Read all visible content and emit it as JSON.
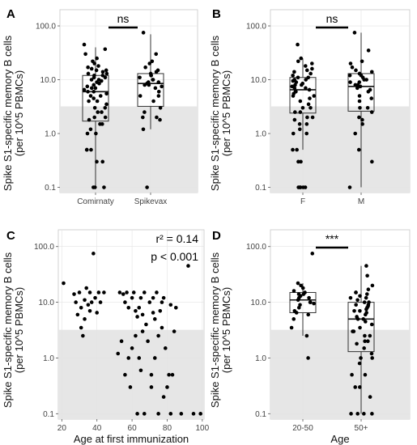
{
  "ylabel_line1": "Spike S1-specific memory B cells",
  "ylabel_line2": "(per 10^5 PBMCs)",
  "y_ticks": [
    "0.1",
    "1.0",
    "10.0",
    "100.0"
  ],
  "threshold": 3.2,
  "colors": {
    "shade": "#e6e6e6",
    "points": "#000000",
    "box": "#333333"
  },
  "chart_data": [
    {
      "panel": "A",
      "type": "boxplot",
      "y_scale": "log10",
      "ylim": [
        0.08,
        200
      ],
      "xlabel": "",
      "significance": "ns",
      "groups": [
        {
          "label": "Comirnaty",
          "box": {
            "whisker_low": 0.1,
            "q1": 1.7,
            "median": 6.0,
            "q3": 12.0,
            "whisker_high": 40
          },
          "values": [
            45,
            37,
            30,
            25,
            22,
            20,
            18,
            17,
            16,
            15,
            15,
            14,
            13,
            13,
            12,
            12,
            11,
            11,
            10,
            10,
            9.5,
            9,
            8.5,
            8,
            7.5,
            7,
            7,
            6.5,
            6,
            6,
            5.5,
            5,
            5,
            4.5,
            4,
            4,
            3.5,
            3,
            3,
            2.5,
            2.5,
            2,
            2,
            1.8,
            1.5,
            1.5,
            1.2,
            1,
            1,
            0.5,
            0.5,
            0.5,
            0.3,
            0.3,
            0.1,
            0.1,
            0.1
          ]
        },
        {
          "label": "Spikevax",
          "box": {
            "whisker_low": 1.2,
            "q1": 3.2,
            "median": 8.5,
            "q3": 13.0,
            "whisker_high": 70
          },
          "values": [
            75,
            30,
            22,
            20,
            17,
            15,
            14,
            13,
            12,
            12,
            11,
            10,
            10,
            9,
            9,
            8.5,
            8,
            8,
            7.5,
            7,
            6,
            5,
            5,
            4,
            3,
            2.5,
            2,
            2,
            1.8,
            1.2,
            0.1
          ]
        }
      ]
    },
    {
      "panel": "B",
      "type": "boxplot",
      "y_scale": "log10",
      "ylim": [
        0.08,
        200
      ],
      "xlabel": "",
      "significance": "ns",
      "groups": [
        {
          "label": "F",
          "box": {
            "whisker_low": 0.5,
            "q1": 2.4,
            "median": 6.5,
            "q3": 11.0,
            "whisker_high": 25
          },
          "values": [
            45,
            25,
            22,
            20,
            18,
            16,
            15,
            14,
            13,
            12,
            11,
            11,
            10,
            10,
            9.5,
            9,
            8.5,
            8,
            8,
            7.5,
            7,
            7,
            6.5,
            6,
            6,
            5.5,
            5,
            5,
            4.5,
            4,
            3.5,
            3,
            3,
            2.5,
            2.5,
            2,
            2,
            1.8,
            1.5,
            1.5,
            1.2,
            1,
            1,
            0.5,
            0.5,
            0.3,
            0.3,
            0.1,
            0.1,
            0.1,
            0.1,
            0.1
          ]
        },
        {
          "label": "M",
          "box": {
            "whisker_low": 0.1,
            "q1": 2.6,
            "median": 7.5,
            "q3": 13.0,
            "whisker_high": 75
          },
          "values": [
            75,
            35,
            22,
            20,
            17,
            15,
            14,
            13,
            12,
            12,
            11,
            10,
            10,
            9,
            9,
            8,
            8,
            7.5,
            7,
            6.5,
            6,
            5,
            4.5,
            4,
            3,
            3,
            2.5,
            2,
            1.8,
            1.5,
            1,
            0.5,
            0.3,
            0.1
          ]
        }
      ]
    },
    {
      "panel": "C",
      "type": "scatter",
      "y_scale": "log10",
      "ylim": [
        0.08,
        200
      ],
      "xlim": [
        18,
        101
      ],
      "x_ticks": [
        20,
        40,
        60,
        80,
        100
      ],
      "xlabel": "Age at first immunization",
      "annotation_r2": "r² = 0.14",
      "annotation_p": "p < 0.001",
      "points": [
        [
          21,
          22
        ],
        [
          27,
          14
        ],
        [
          28,
          10
        ],
        [
          29,
          6
        ],
        [
          30,
          15
        ],
        [
          31,
          8
        ],
        [
          31,
          3.5
        ],
        [
          32,
          2.5
        ],
        [
          33,
          11
        ],
        [
          33,
          5
        ],
        [
          34,
          18
        ],
        [
          35,
          9
        ],
        [
          36,
          15
        ],
        [
          36,
          7
        ],
        [
          37,
          10
        ],
        [
          38,
          75
        ],
        [
          39,
          12
        ],
        [
          40,
          6.5
        ],
        [
          41,
          15
        ],
        [
          42,
          10
        ],
        [
          44,
          15
        ],
        [
          52,
          1.2
        ],
        [
          53,
          15
        ],
        [
          54,
          2
        ],
        [
          55,
          14
        ],
        [
          56,
          0.5
        ],
        [
          56,
          10
        ],
        [
          57,
          15
        ],
        [
          58,
          8
        ],
        [
          58,
          1
        ],
        [
          59,
          0.3
        ],
        [
          60,
          12
        ],
        [
          60,
          1.5
        ],
        [
          61,
          15
        ],
        [
          62,
          7
        ],
        [
          62,
          2.5
        ],
        [
          63,
          0.1
        ],
        [
          63,
          5.5
        ],
        [
          64,
          8
        ],
        [
          64,
          1
        ],
        [
          65,
          12
        ],
        [
          65,
          0.6
        ],
        [
          66,
          3
        ],
        [
          66,
          6
        ],
        [
          67,
          15
        ],
        [
          67,
          0.1
        ],
        [
          68,
          4
        ],
        [
          69,
          2
        ],
        [
          70,
          10
        ],
        [
          71,
          0.5
        ],
        [
          71,
          0.3
        ],
        [
          72,
          6.5
        ],
        [
          72,
          12
        ],
        [
          73,
          5
        ],
        [
          73,
          1
        ],
        [
          74,
          15
        ],
        [
          75,
          2.5
        ],
        [
          75,
          0.1
        ],
        [
          76,
          7
        ],
        [
          77,
          10
        ],
        [
          77,
          3.5
        ],
        [
          78,
          0.2
        ],
        [
          78,
          12
        ],
        [
          79,
          1.5
        ],
        [
          80,
          0.3
        ],
        [
          81,
          0.5
        ],
        [
          82,
          9
        ],
        [
          82,
          0.1
        ],
        [
          83,
          0.5
        ],
        [
          84,
          3
        ],
        [
          85,
          8
        ],
        [
          88,
          0.1
        ],
        [
          92,
          45
        ],
        [
          95,
          0.1
        ],
        [
          99,
          0.1
        ]
      ]
    },
    {
      "panel": "D",
      "type": "boxplot",
      "y_scale": "log10",
      "ylim": [
        0.08,
        200
      ],
      "xlabel": "Age",
      "significance": "***",
      "groups": [
        {
          "label": "20-50",
          "box": {
            "whisker_low": 2.5,
            "q1": 6.5,
            "median": 11.0,
            "q3": 15.0,
            "whisker_high": 22
          },
          "values": [
            75,
            22,
            20,
            18,
            16,
            15,
            14,
            14,
            13,
            12,
            12,
            11,
            10,
            10,
            9.5,
            9,
            8,
            7,
            6.5,
            6,
            5,
            3.5,
            2.5,
            1.0
          ]
        },
        {
          "label": "50+",
          "box": {
            "whisker_low": 0.1,
            "q1": 1.3,
            "median": 5.0,
            "q3": 10.0,
            "whisker_high": 45
          },
          "values": [
            45,
            30,
            20,
            17,
            15,
            15,
            14,
            13,
            12,
            12,
            11,
            10,
            10,
            9,
            9,
            8.5,
            8,
            7.5,
            7,
            7,
            6.5,
            6,
            5.5,
            5,
            5,
            4.5,
            4,
            3.5,
            3,
            3,
            2.5,
            2.5,
            2,
            2,
            1.8,
            1.5,
            1.2,
            1,
            1,
            0.8,
            0.5,
            0.5,
            0.3,
            0.3,
            0.2,
            0.1,
            0.1,
            0.1,
            0.1
          ]
        }
      ]
    }
  ]
}
